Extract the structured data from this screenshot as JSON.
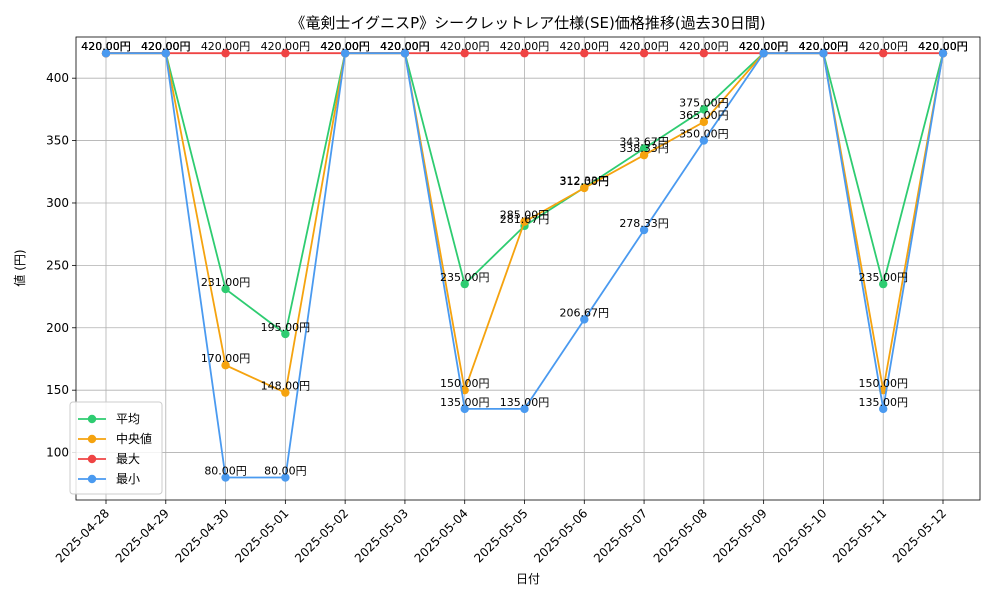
{
  "chart_data": {
    "type": "line",
    "title": "《竜剣士イグニスP》シークレットレア仕様(SE)価格推移(過去30日間)",
    "xlabel": "日付",
    "ylabel": "値 (円)",
    "categories": [
      "2025-04-28",
      "2025-04-29",
      "2025-04-30",
      "2025-05-01",
      "2025-05-02",
      "2025-05-03",
      "2025-05-04",
      "2025-05-05",
      "2025-05-06",
      "2025-05-07",
      "2025-05-08",
      "2025-05-09",
      "2025-05-10",
      "2025-05-11",
      "2025-05-12"
    ],
    "ylim": [
      62,
      433
    ],
    "yticks": [
      100,
      150,
      200,
      250,
      300,
      350,
      400
    ],
    "grid": true,
    "legend_position": "lower-left",
    "value_suffix": "円",
    "series": [
      {
        "name": "平均",
        "color": "#2ecc71",
        "values": [
          420,
          420,
          231,
          195,
          420,
          420,
          235,
          281.67,
          312.33,
          343.67,
          375,
          420,
          420,
          235,
          420
        ],
        "labels": [
          "420.00円",
          "420.00円",
          "231.00円",
          "195.00円",
          "420.00円",
          "420.00円",
          "235.00円",
          "281.67円",
          "312.33円",
          "343.67円",
          "375.00円",
          "420.00円",
          "420.00円",
          "235.00円",
          "420.00円"
        ]
      },
      {
        "name": "中央値",
        "color": "#f5a30f",
        "values": [
          420,
          420,
          170,
          148,
          420,
          420,
          150,
          285,
          312,
          338.33,
          365,
          420,
          420,
          150,
          420
        ],
        "labels": [
          "420.00円",
          "420.00円",
          "170.00円",
          "148.00円",
          "420.00円",
          "420.00円",
          "150.00円",
          "285.00円",
          "312.00円",
          "338.33円",
          "365.00円",
          "420.00円",
          "420.00円",
          "150.00円",
          "420.00円"
        ]
      },
      {
        "name": "最大",
        "color": "#ef4444",
        "values": [
          420,
          420,
          420,
          420,
          420,
          420,
          420,
          420,
          420,
          420,
          420,
          420,
          420,
          420,
          420
        ],
        "labels": [
          "420.00円",
          "420.00円",
          "420.00円",
          "420.00円",
          "420.00円",
          "420.00円",
          "420.00円",
          "420.00円",
          "420.00円",
          "420.00円",
          "420.00円",
          "420.00円",
          "420.00円",
          "420.00円",
          "420.00円"
        ]
      },
      {
        "name": "最小",
        "color": "#4a9af0",
        "values": [
          420,
          420,
          80,
          80,
          420,
          420,
          135,
          135,
          206.67,
          278.33,
          350,
          420,
          420,
          135,
          420
        ],
        "labels": [
          "420.00円",
          "420.00円",
          "80.00円",
          "80.00円",
          "420.00円",
          "420.00円",
          "135.00円",
          "135.00円",
          "206.67円",
          "278.33円",
          "350.00円",
          "420.00円",
          "420.00円",
          "135.00円",
          "420.00円"
        ]
      }
    ]
  }
}
